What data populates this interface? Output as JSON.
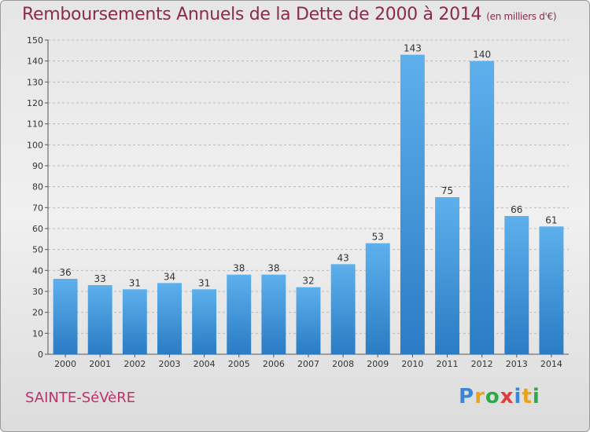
{
  "title": "Remboursements Annuels de la Dette de 2000 à 2014",
  "unit": "(en milliers d'€)",
  "commune": "SAINTE-SéVèRE",
  "logo": {
    "p": "P",
    "r": "r",
    "o": "o",
    "x": "x",
    "i": "i",
    "t": "t",
    "i2": "i"
  },
  "colors": {
    "bar": "#4aa1e2",
    "bar_dark": "#2c7fc7",
    "title": "#8b2a4d",
    "commune": "#c0306a"
  },
  "chart_data": {
    "type": "bar",
    "categories": [
      "2000",
      "2001",
      "2002",
      "2003",
      "2004",
      "2005",
      "2006",
      "2007",
      "2008",
      "2009",
      "2010",
      "2011",
      "2012",
      "2013",
      "2014"
    ],
    "values": [
      36,
      33,
      31,
      34,
      31,
      38,
      38,
      32,
      43,
      53,
      143,
      75,
      140,
      66,
      61
    ],
    "ylim": [
      0,
      150
    ],
    "yticks": [
      0,
      10,
      20,
      30,
      40,
      50,
      60,
      70,
      80,
      90,
      100,
      110,
      120,
      130,
      140,
      150
    ],
    "grid": true,
    "data_labels": true
  }
}
